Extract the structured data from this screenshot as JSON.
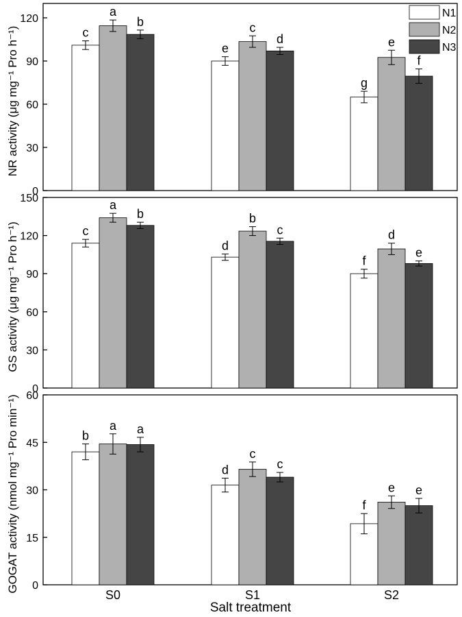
{
  "chart_data": [
    {
      "type": "bar",
      "ylabel": "NR activity (μg mg⁻¹ Pro h⁻¹)",
      "ylim": [
        0,
        130
      ],
      "yticks": [
        0,
        30,
        60,
        90,
        120
      ],
      "categories": [
        "S0",
        "S1",
        "S2"
      ],
      "series": [
        {
          "name": "N1",
          "values": [
            101,
            90,
            65
          ],
          "errors": [
            3,
            3,
            4
          ],
          "labels": [
            "c",
            "e",
            "g"
          ]
        },
        {
          "name": "N2",
          "values": [
            114.5,
            103.5,
            92.5
          ],
          "errors": [
            4,
            4,
            5
          ],
          "labels": [
            "a",
            "c",
            "e"
          ]
        },
        {
          "name": "N3",
          "values": [
            108.5,
            97,
            79.5
          ],
          "errors": [
            3,
            2.5,
            5
          ],
          "labels": [
            "b",
            "d",
            "f"
          ]
        }
      ]
    },
    {
      "type": "bar",
      "ylabel": "GS activity (μg mg⁻¹ Pro h⁻¹)",
      "ylim": [
        0,
        150
      ],
      "yticks": [
        0,
        30,
        60,
        90,
        120,
        150
      ],
      "categories": [
        "S0",
        "S1",
        "S2"
      ],
      "series": [
        {
          "name": "N1",
          "values": [
            114,
            103,
            90
          ],
          "errors": [
            3,
            2.5,
            3.5
          ],
          "labels": [
            "c",
            "d",
            "f"
          ]
        },
        {
          "name": "N2",
          "values": [
            134,
            123.5,
            109.5
          ],
          "errors": [
            3.5,
            3.5,
            4.5
          ],
          "labels": [
            "a",
            "b",
            "d"
          ]
        },
        {
          "name": "N3",
          "values": [
            128,
            115.5,
            98
          ],
          "errors": [
            2.5,
            2.5,
            2
          ],
          "labels": [
            "b",
            "c",
            "e"
          ]
        }
      ]
    },
    {
      "type": "bar",
      "ylabel": "GOGAT activity (nmol mg⁻¹ Pro min⁻¹)",
      "ylim": [
        0,
        60
      ],
      "yticks": [
        0,
        15,
        30,
        45,
        60
      ],
      "categories": [
        "S0",
        "S1",
        "S2"
      ],
      "series": [
        {
          "name": "N1",
          "values": [
            42,
            31.5,
            19.3
          ],
          "errors": [
            2.5,
            2.2,
            3.2
          ],
          "labels": [
            "b",
            "d",
            "f"
          ]
        },
        {
          "name": "N2",
          "values": [
            44.5,
            36.5,
            26.1
          ],
          "errors": [
            3.2,
            2.3,
            2
          ],
          "labels": [
            "a",
            "c",
            "e"
          ]
        },
        {
          "name": "N3",
          "values": [
            44.3,
            34,
            25
          ],
          "errors": [
            2.3,
            1.5,
            2.3
          ],
          "labels": [
            "a",
            "c",
            "e"
          ]
        }
      ]
    }
  ],
  "xlabel": "Salt treatment",
  "legend": [
    {
      "name": "N1",
      "color": "#ffffff"
    },
    {
      "name": "N2",
      "color": "#b0b0b0"
    },
    {
      "name": "N3",
      "color": "#454545"
    }
  ],
  "colors": {
    "N1": "#ffffff",
    "N2": "#b0b0b0",
    "N3": "#454545",
    "axis": "#000000"
  }
}
